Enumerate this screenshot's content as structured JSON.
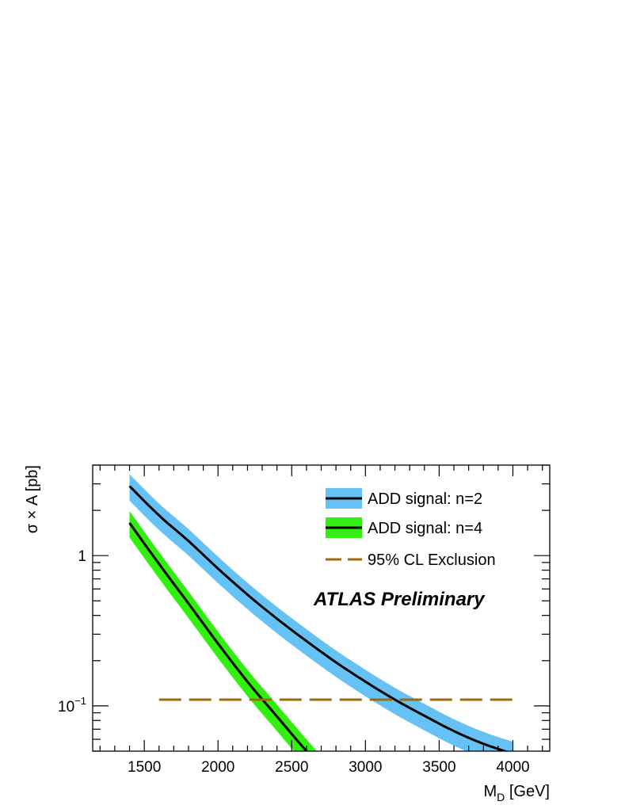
{
  "chart_data": {
    "type": "line",
    "title": "",
    "annotation": "ATLAS Preliminary",
    "xlabel": {
      "main": "M",
      "sub": "D",
      "unit": " [GeV]"
    },
    "ylabel": "σ × A [pb]",
    "xlim": [
      1150,
      4250
    ],
    "ylim": [
      0.05,
      4.0
    ],
    "yscale": "log",
    "xticks": [
      1500,
      2000,
      2500,
      3000,
      3500,
      4000
    ],
    "xtick_labels": [
      "1500",
      "2000",
      "2500",
      "3000",
      "3500",
      "4000"
    ],
    "yticks": [
      {
        "value": 1,
        "label": "1",
        "sup": ""
      },
      {
        "value": 0.1,
        "label": "10",
        "sup": "−1"
      }
    ],
    "legend_position": "top-right",
    "series": [
      {
        "name": "ADD signal: n=2",
        "band_color": "#66c2f5",
        "line_color": "#000000",
        "x": [
          1400,
          1600,
          1800,
          2000,
          2200,
          2400,
          2600,
          2800,
          3000,
          3200,
          3400,
          3600,
          3800,
          4000
        ],
        "y": [
          2.9,
          1.85,
          1.25,
          0.82,
          0.55,
          0.38,
          0.27,
          0.195,
          0.145,
          0.11,
          0.086,
          0.068,
          0.056,
          0.048
        ],
        "band_rel_err": 0.2
      },
      {
        "name": "ADD signal: n=4",
        "band_color": "#33ee11",
        "line_color": "#000000",
        "x": [
          1400,
          1600,
          1800,
          2000,
          2200,
          2400,
          2600,
          2800
        ],
        "y": [
          1.65,
          0.88,
          0.48,
          0.26,
          0.145,
          0.085,
          0.05,
          0.03
        ],
        "band_rel_err": 0.2
      },
      {
        "name": "95% CL Exclusion",
        "line_color": "#a06a0c",
        "dashed": true,
        "x": [
          1600,
          4000
        ],
        "y": [
          0.11,
          0.11
        ]
      }
    ]
  }
}
